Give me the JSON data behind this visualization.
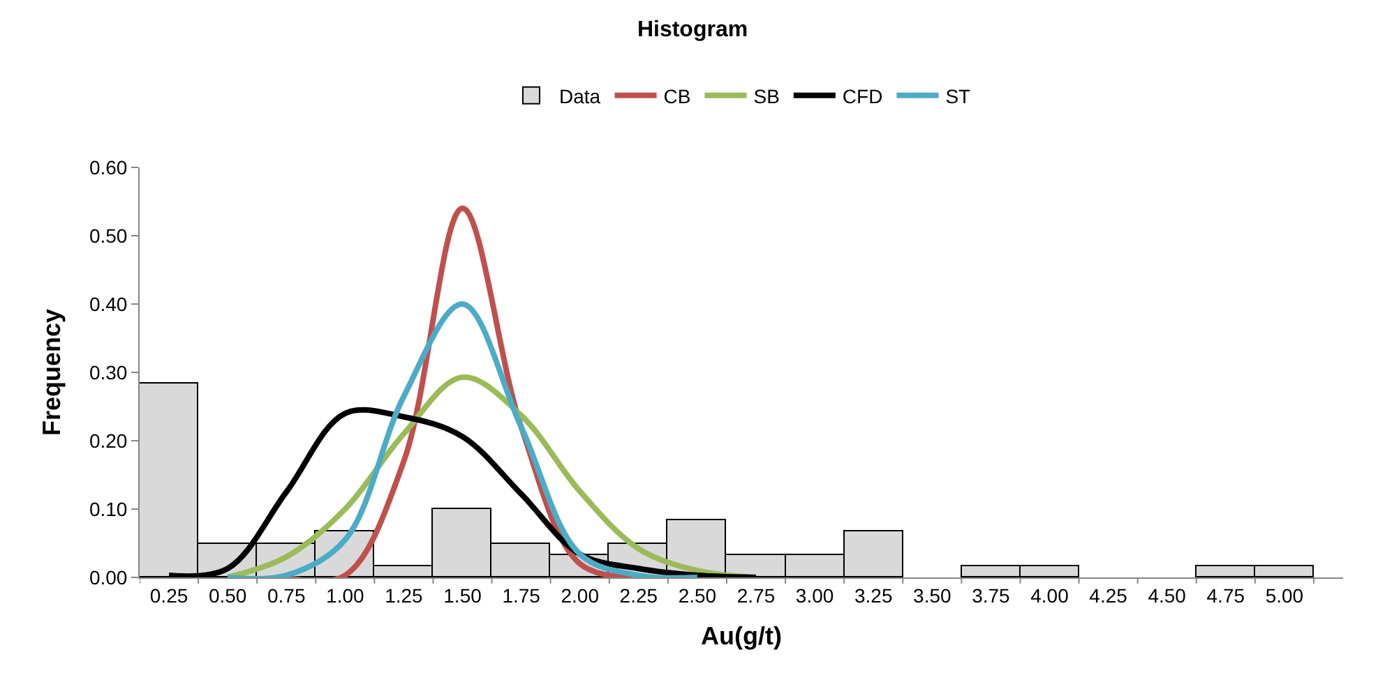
{
  "chart_data": {
    "type": "bar",
    "title": "Histogram",
    "xlabel": "Au(g/t)",
    "ylabel": "Frequency",
    "categories": [
      "0.25",
      "0.50",
      "0.75",
      "1.00",
      "1.25",
      "1.50",
      "1.75",
      "2.00",
      "2.25",
      "2.50",
      "2.75",
      "3.00",
      "3.25",
      "3.50",
      "3.75",
      "4.00",
      "4.25",
      "4.50",
      "4.75",
      "5.00"
    ],
    "series": [
      {
        "name": "Data",
        "color": "#d9d9d9",
        "values": [
          0.283,
          0.05,
          0.05,
          0.067,
          0.017,
          0.1,
          0.05,
          0.033,
          0.05,
          0.083,
          0.033,
          0.033,
          0.067,
          0,
          0.017,
          0.017,
          0,
          0,
          0.017,
          0.017
        ]
      },
      {
        "name": "CB",
        "type": "line",
        "color": "#c0504d",
        "values": [
          null,
          null,
          0,
          0.003,
          0.17,
          0.54,
          0.22,
          0.02,
          0,
          null,
          null,
          null,
          null,
          null,
          null,
          null,
          null,
          null,
          null,
          null
        ]
      },
      {
        "name": "SB",
        "type": "line",
        "color": "#9bbb59",
        "values": [
          null,
          0,
          0.03,
          0.1,
          0.21,
          0.293,
          0.237,
          0.126,
          0.042,
          0.01,
          0,
          null,
          null,
          null,
          null,
          null,
          null,
          null,
          null,
          null
        ]
      },
      {
        "name": "CFD",
        "type": "line",
        "color": "#000000",
        "values": [
          0.003,
          0.013,
          0.125,
          0.24,
          0.235,
          0.206,
          0.122,
          0.034,
          0.013,
          0.003,
          0,
          null,
          null,
          null,
          null,
          null,
          null,
          null,
          null,
          null
        ]
      },
      {
        "name": "ST",
        "type": "line",
        "color": "#4bacc6",
        "values": [
          null,
          0,
          0.003,
          0.055,
          0.265,
          0.4,
          0.22,
          0.034,
          0.003,
          0,
          null,
          null,
          null,
          null,
          null,
          null,
          null,
          null,
          null,
          null
        ]
      }
    ],
    "ylim": [
      0,
      0.6
    ],
    "yticks": [
      {
        "value": 0,
        "label": "0.00"
      },
      {
        "value": 0.1,
        "label": "0.10"
      },
      {
        "value": 0.2,
        "label": "0.20"
      },
      {
        "value": 0.3,
        "label": "0.30"
      },
      {
        "value": 0.4,
        "label": "0.40"
      },
      {
        "value": 0.5,
        "label": "0.50"
      },
      {
        "value": 0.6,
        "label": "0.60"
      }
    ],
    "grid": false,
    "legend": "top",
    "marker": "none",
    "line_style": "solid"
  }
}
